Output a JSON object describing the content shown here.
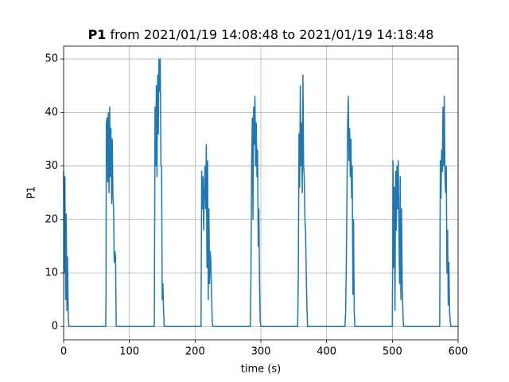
{
  "chart_data": {
    "type": "line",
    "title": "P1",
    "subtitle": "from 2021/01/19 14:08:48 to 2021/01/19 14:18:48",
    "xlabel": "time (s)",
    "ylabel": "P1",
    "xlim": [
      0,
      600
    ],
    "ylim": [
      -2.5,
      52.4
    ],
    "xticks": [
      0,
      100,
      200,
      300,
      400,
      500,
      600
    ],
    "yticks": [
      0,
      10,
      20,
      30,
      40,
      50
    ],
    "grid": true,
    "series": [
      {
        "name": "P1",
        "color": "#1f77b4",
        "x": [
          0,
          1,
          2,
          3,
          4,
          5,
          6,
          7,
          8,
          64,
          64.5,
          65,
          66,
          67,
          68,
          69,
          70,
          71,
          72,
          73,
          74,
          75,
          76,
          77,
          78,
          79,
          80,
          138,
          139,
          140,
          141,
          142,
          143,
          144,
          145,
          146,
          147,
          148,
          149,
          150,
          151,
          152,
          153,
          209,
          210,
          211,
          212,
          213,
          214,
          215,
          216,
          217,
          218,
          219,
          220,
          221,
          222,
          223,
          224,
          225,
          226,
          227,
          284,
          285,
          286,
          287,
          288,
          289,
          290,
          291,
          292,
          293,
          294,
          295,
          296,
          297,
          298,
          299,
          300,
          356,
          357,
          358,
          359,
          360,
          361,
          362,
          363,
          364,
          365,
          366,
          367,
          368,
          369,
          370,
          371,
          428,
          429,
          430,
          431,
          432,
          433,
          434,
          435,
          436,
          437,
          438,
          439,
          440,
          441,
          442,
          443,
          500,
          501,
          502,
          503,
          504,
          505,
          506,
          507,
          508,
          509,
          510,
          511,
          512,
          513,
          514,
          515,
          516,
          517,
          572,
          573,
          574,
          575,
          576,
          577,
          578,
          579,
          580,
          581,
          582,
          583,
          584,
          585,
          586,
          587,
          588,
          589,
          590,
          600
        ],
        "values": [
          29,
          10,
          28,
          5,
          21,
          3,
          13,
          2,
          0,
          0,
          6,
          38,
          39,
          27,
          40,
          25,
          41,
          28,
          37,
          23,
          35,
          24,
          22,
          12,
          14,
          13,
          0,
          0,
          41,
          30,
          45,
          28,
          47,
          36,
          50,
          44,
          50,
          30,
          30,
          5,
          8,
          3,
          0,
          0,
          29,
          22,
          28,
          18,
          25,
          30,
          22,
          34,
          11,
          31,
          5,
          22,
          8,
          14,
          12,
          6,
          1,
          0,
          0,
          10,
          31,
          39,
          20,
          41,
          34,
          43,
          30,
          38,
          28,
          33,
          15,
          22,
          8,
          1,
          0,
          0,
          10,
          36,
          26,
          45,
          30,
          38,
          25,
          47,
          30,
          28,
          20,
          18,
          10,
          4,
          0,
          0,
          3,
          12,
          25,
          38,
          43,
          31,
          37,
          28,
          35,
          24,
          30,
          6,
          20,
          3,
          0,
          0,
          31,
          11,
          26,
          3,
          29,
          18,
          30,
          22,
          31,
          17,
          8,
          28,
          5,
          22,
          8,
          3,
          0,
          0,
          31,
          24,
          33,
          29,
          41,
          30,
          43,
          28,
          25,
          30,
          10,
          18,
          4,
          12,
          3,
          1,
          0,
          0,
          0
        ]
      }
    ]
  }
}
